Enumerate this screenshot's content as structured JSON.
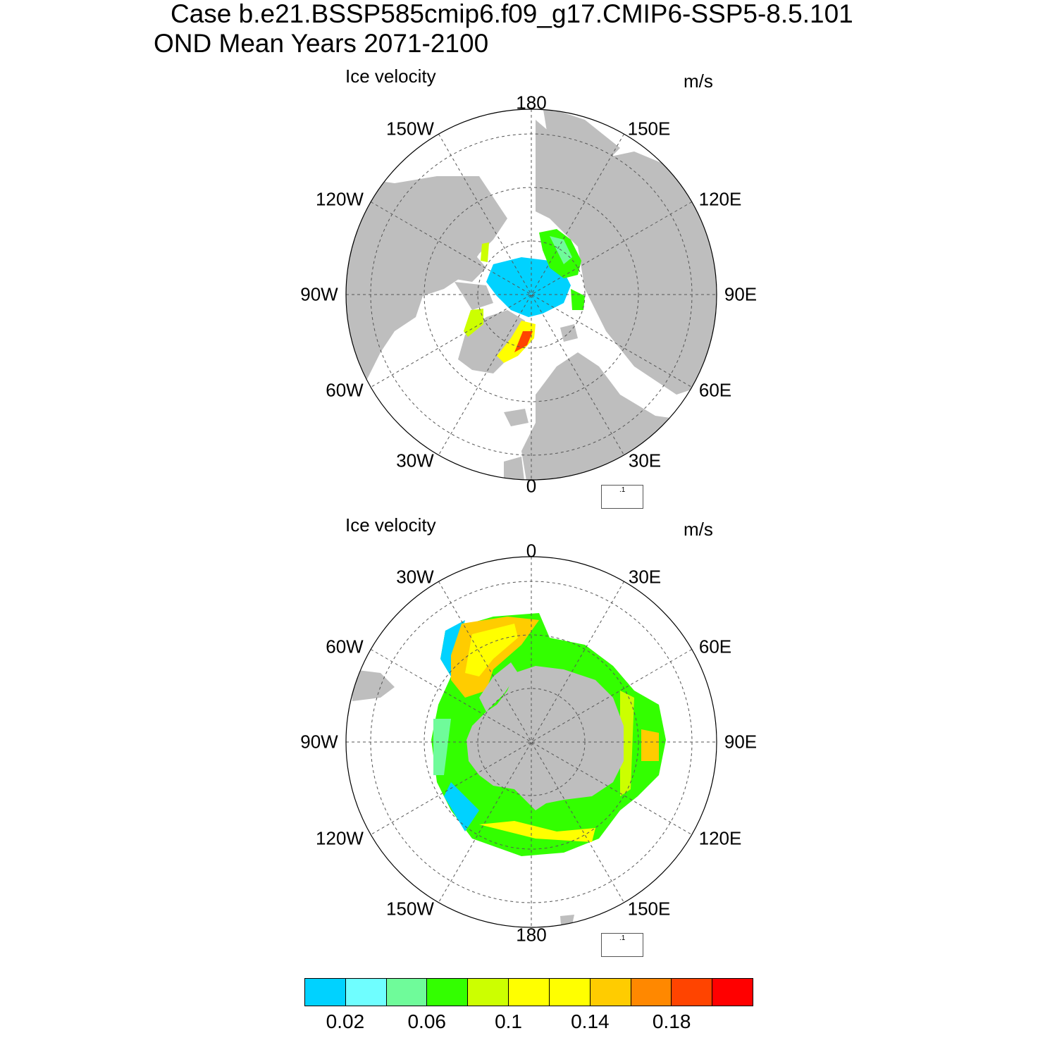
{
  "title_line1": "Case b.e21.BSSP585cmip6.f09_g17.CMIP6-SSP5-8.5.101",
  "title_line2": "OND Mean   Years 2071-2100",
  "panels": [
    {
      "hemisphere": "north",
      "label": "Ice velocity",
      "units": "m/s",
      "lon_labels": {
        "top": "180",
        "top_right": "150E",
        "right_upper": "120E",
        "right": "90E",
        "right_lower": "60E",
        "bottom_right": "30E",
        "bottom": "0",
        "bottom_left": "30W",
        "left_lower": "60W",
        "left": "90W",
        "left_upper": "120W",
        "top_left": "150W"
      },
      "ref_vector": ".1"
    },
    {
      "hemisphere": "south",
      "label": "Ice velocity",
      "units": "m/s",
      "lon_labels": {
        "top": "0",
        "top_right": "30E",
        "right_upper": "60E",
        "right": "90E",
        "right_lower": "120E",
        "bottom_right": "150E",
        "bottom": "180",
        "bottom_left": "150W",
        "left_lower": "120W",
        "left": "90W",
        "left_upper": "60W",
        "top_left": "30W"
      },
      "ref_vector": ".1"
    }
  ],
  "colorbar": {
    "colors": [
      "#00d2ff",
      "#6ffeff",
      "#6ffb9a",
      "#33ff00",
      "#ccff00",
      "#ffff00",
      "#ffff00",
      "#ffcc00",
      "#ff8800",
      "#ff4400",
      "#ff0000"
    ],
    "labels": [
      "0.02",
      "0.06",
      "0.1",
      "0.14",
      "0.18"
    ]
  },
  "colors": {
    "land": "#bebebe",
    "ocean": "#ffffff",
    "grid": "#555555"
  }
}
